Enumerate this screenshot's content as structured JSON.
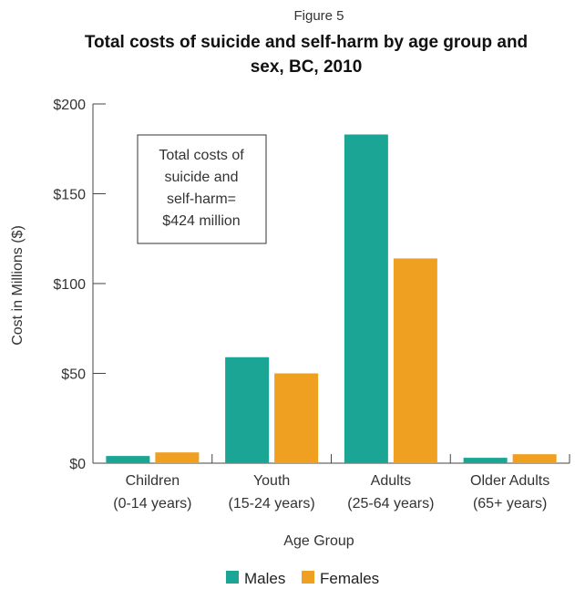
{
  "figure_label": "Figure 5",
  "chart_data": {
    "type": "bar",
    "title_lines": [
      "Total costs of suicide and self-harm by age group and",
      "sex, BC, 2010"
    ],
    "categories": [
      [
        "Children",
        "(0-14 years)"
      ],
      [
        "Youth",
        "(15-24 years)"
      ],
      [
        "Adults",
        "(25-64 years)"
      ],
      [
        "Older Adults",
        "(65+ years)"
      ]
    ],
    "series": [
      {
        "name": "Males",
        "color": "#1aa595",
        "values": [
          4,
          59,
          183,
          3
        ]
      },
      {
        "name": "Females",
        "color": "#f0a020",
        "values": [
          6,
          50,
          114,
          5
        ]
      }
    ],
    "xlabel": "Age Group",
    "ylabel": "Cost in Millions ($)",
    "ylim": [
      0,
      200
    ],
    "yticks": [
      0,
      50,
      100,
      150,
      200
    ],
    "ytick_labels": [
      "$0",
      "$50",
      "$100",
      "$150",
      "$200"
    ],
    "grid": false,
    "legend_position": "bottom",
    "annotation_lines": [
      "Total costs of",
      "suicide and",
      "self-harm=",
      "$424 million"
    ]
  }
}
